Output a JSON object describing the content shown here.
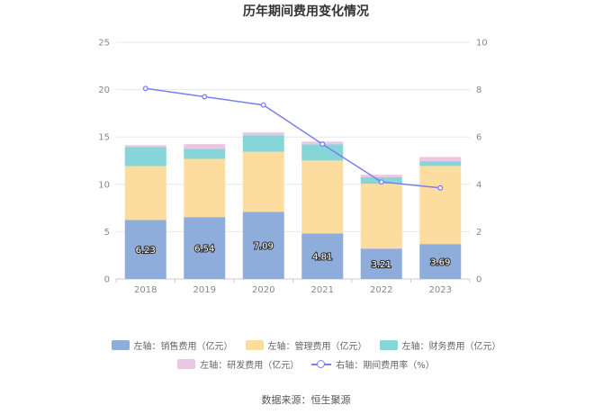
{
  "colors": {
    "sales": "#8fadda",
    "admin": "#fddc9f",
    "finance": "#85d5d9",
    "rnd": "#ecc7e3",
    "rate": "#7b80ee",
    "grid": "#e8e8e8",
    "axis_text": "#888888",
    "title": "#333333"
  },
  "chart_data": {
    "type": "bar+line",
    "title": "历年期间费用变化情况",
    "categories": [
      "2018",
      "2019",
      "2020",
      "2021",
      "2022",
      "2023"
    ],
    "series": [
      {
        "name": "左轴：销售费用（亿元）",
        "key": "sales",
        "axis": "left",
        "stacked": true,
        "values": [
          6.23,
          6.54,
          7.09,
          4.81,
          3.21,
          3.69
        ],
        "labels": [
          "6.23",
          "6.54",
          "7.09",
          "4.81",
          "3.21",
          "3.69"
        ]
      },
      {
        "name": "左轴：管理费用（亿元）",
        "key": "admin",
        "axis": "left",
        "stacked": true,
        "values": [
          5.7,
          6.15,
          6.35,
          7.7,
          6.85,
          8.25
        ]
      },
      {
        "name": "左轴：财务费用（亿元）",
        "key": "finance",
        "axis": "left",
        "stacked": true,
        "values": [
          2.0,
          1.05,
          1.75,
          1.7,
          0.7,
          0.5
        ]
      },
      {
        "name": "左轴：研发费用（亿元）",
        "key": "rnd",
        "axis": "left",
        "stacked": true,
        "values": [
          0.2,
          0.5,
          0.3,
          0.3,
          0.25,
          0.45
        ]
      },
      {
        "name": "右轴：期间费用率（%）",
        "key": "rate",
        "axis": "right",
        "type": "line",
        "values": [
          8.05,
          7.7,
          7.35,
          5.7,
          4.1,
          3.85
        ]
      }
    ],
    "left_axis": {
      "min": 0,
      "max": 25,
      "ticks": [
        "0",
        "5",
        "10",
        "15",
        "20",
        "25"
      ]
    },
    "right_axis": {
      "min": 0,
      "max": 10,
      "ticks": [
        "0",
        "2",
        "4",
        "6",
        "8",
        "10"
      ]
    },
    "legend_position": "bottom"
  },
  "legend": {
    "row1": [
      "左轴：销售费用（亿元）",
      "左轴：管理费用（亿元）",
      "左轴：财务费用（亿元）"
    ],
    "row2": [
      "左轴：研发费用（亿元）",
      "右轴：期间费用率（%）"
    ]
  },
  "source": "数据来源：恒生聚源"
}
